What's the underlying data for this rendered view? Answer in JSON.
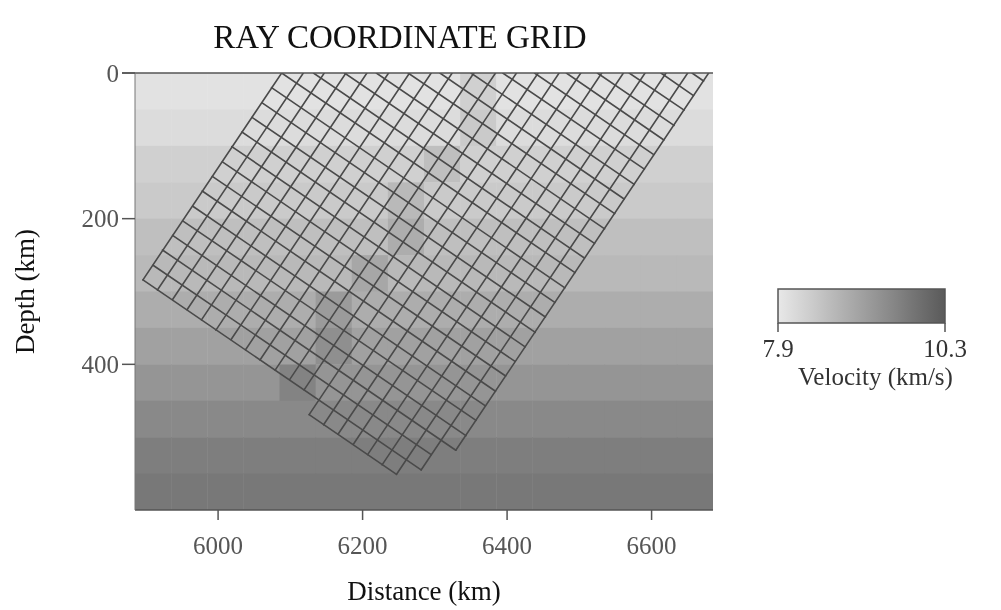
{
  "chart_data": {
    "type": "heatmap",
    "title": "RAY COORDINATE GRID",
    "xlabel": "Distance (km)",
    "ylabel": "Depth (km)",
    "clabel": "Velocity (km/s)",
    "xlim": [
      5885,
      6685
    ],
    "xticks": [
      6000,
      6200,
      6400,
      6600
    ],
    "ylim": [
      600,
      0
    ],
    "yticks": [
      0,
      200,
      400
    ],
    "clim": [
      7.9,
      10.3
    ],
    "cticks": [
      7.9,
      10.3
    ],
    "colors": [
      "#e8e8e8",
      "#5a5a5a"
    ],
    "cells": [
      [
        8.0,
        8.0,
        8.0,
        8.0,
        8.0,
        8.0,
        8.0,
        8.0,
        8.0,
        8.3,
        8.0,
        8.0,
        8.0,
        8.0,
        8.0,
        8.0
      ],
      [
        8.1,
        8.1,
        8.1,
        8.1,
        8.1,
        8.1,
        8.1,
        8.1,
        8.1,
        8.4,
        8.1,
        8.1,
        8.1,
        8.1,
        8.1,
        8.1
      ],
      [
        8.3,
        8.3,
        8.3,
        8.3,
        8.3,
        8.3,
        8.3,
        8.3,
        8.6,
        8.3,
        8.3,
        8.3,
        8.3,
        8.3,
        8.3,
        8.3
      ],
      [
        8.4,
        8.4,
        8.4,
        8.4,
        8.4,
        8.4,
        8.4,
        8.7,
        8.4,
        8.4,
        8.4,
        8.4,
        8.4,
        8.4,
        8.4,
        8.4
      ],
      [
        8.6,
        8.6,
        8.6,
        8.6,
        8.6,
        8.6,
        8.6,
        8.9,
        8.6,
        8.6,
        8.6,
        8.6,
        8.6,
        8.6,
        8.6,
        8.6
      ],
      [
        8.7,
        8.7,
        8.7,
        8.7,
        8.7,
        8.7,
        9.0,
        8.7,
        8.7,
        8.7,
        8.7,
        8.7,
        8.7,
        8.7,
        8.7,
        8.7
      ],
      [
        8.9,
        8.9,
        8.9,
        8.9,
        8.9,
        9.2,
        8.9,
        8.9,
        8.9,
        8.9,
        8.9,
        8.9,
        8.9,
        8.9,
        8.9,
        8.9
      ],
      [
        9.1,
        9.1,
        9.1,
        9.1,
        9.1,
        9.4,
        9.1,
        9.1,
        9.1,
        9.1,
        9.1,
        9.1,
        9.1,
        9.1,
        9.1,
        9.1
      ],
      [
        9.3,
        9.3,
        9.3,
        9.3,
        9.6,
        9.3,
        9.3,
        9.3,
        9.3,
        9.3,
        9.3,
        9.3,
        9.3,
        9.3,
        9.3,
        9.3
      ],
      [
        9.5,
        9.5,
        9.5,
        9.5,
        9.5,
        9.5,
        9.5,
        9.5,
        9.5,
        9.5,
        9.5,
        9.5,
        9.5,
        9.5,
        9.5,
        9.5
      ],
      [
        9.7,
        9.7,
        9.7,
        9.7,
        9.7,
        9.7,
        9.7,
        9.7,
        9.7,
        9.7,
        9.7,
        9.7,
        9.7,
        9.7,
        9.7,
        9.7
      ],
      [
        9.8,
        9.8,
        9.8,
        9.8,
        9.8,
        9.8,
        9.8,
        9.8,
        9.8,
        9.8,
        9.8,
        9.8,
        9.8,
        9.8,
        9.8,
        9.8
      ]
    ],
    "series": [
      {
        "type": "line",
        "color": "#4a4a4a",
        "x": [
          6088,
          5896
        ],
        "values": [
          0,
          284
        ]
      },
      {
        "type": "line",
        "color": "#4a4a4a",
        "x": [
          6118,
          5916
        ],
        "values": [
          0,
          298
        ]
      },
      {
        "type": "line",
        "color": "#4a4a4a",
        "x": [
          6147,
          5937
        ],
        "values": [
          0,
          311
        ]
      },
      {
        "type": "line",
        "color": "#4a4a4a",
        "x": [
          6177,
          5957
        ],
        "values": [
          0,
          325
        ]
      },
      {
        "type": "line",
        "color": "#4a4a4a",
        "x": [
          6206,
          5977
        ],
        "values": [
          0,
          339
        ]
      },
      {
        "type": "line",
        "color": "#4a4a4a",
        "x": [
          6236,
          5997
        ],
        "values": [
          0,
          353
        ]
      },
      {
        "type": "line",
        "color": "#4a4a4a",
        "x": [
          6265,
          6018
        ],
        "values": [
          0,
          366
        ]
      },
      {
        "type": "line",
        "color": "#4a4a4a",
        "x": [
          6295,
          6038
        ],
        "values": [
          0,
          380
        ]
      },
      {
        "type": "line",
        "color": "#4a4a4a",
        "x": [
          6324,
          6058
        ],
        "values": [
          0,
          394
        ]
      },
      {
        "type": "line",
        "color": "#4a4a4a",
        "x": [
          6354,
          6079
        ],
        "values": [
          0,
          408
        ]
      },
      {
        "type": "line",
        "color": "#4a4a4a",
        "x": [
          6384,
          6099
        ],
        "values": [
          0,
          421
        ]
      },
      {
        "type": "line",
        "color": "#4a4a4a",
        "x": [
          6413,
          6119
        ],
        "values": [
          0,
          435
        ]
      },
      {
        "type": "line",
        "color": "#4a4a4a",
        "x": [
          6443,
          6126
        ],
        "values": [
          0,
          469
        ]
      },
      {
        "type": "line",
        "color": "#4a4a4a",
        "x": [
          6472,
          6146
        ],
        "values": [
          0,
          483
        ]
      },
      {
        "type": "line",
        "color": "#4a4a4a",
        "x": [
          6502,
          6166
        ],
        "values": [
          0,
          496
        ]
      },
      {
        "type": "line",
        "color": "#4a4a4a",
        "x": [
          6531,
          6187
        ],
        "values": [
          0,
          510
        ]
      },
      {
        "type": "line",
        "color": "#4a4a4a",
        "x": [
          6561,
          6207
        ],
        "values": [
          0,
          524
        ]
      },
      {
        "type": "line",
        "color": "#4a4a4a",
        "x": [
          6591,
          6227
        ],
        "values": [
          0,
          538
        ]
      },
      {
        "type": "line",
        "color": "#4a4a4a",
        "x": [
          6620,
          6247
        ],
        "values": [
          0,
          551
        ]
      },
      {
        "type": "line",
        "color": "#4a4a4a",
        "x": [
          6650,
          6281
        ],
        "values": [
          0,
          545
        ]
      },
      {
        "type": "line",
        "color": "#4a4a4a",
        "x": [
          6679,
          6329
        ],
        "values": [
          0,
          518
        ]
      },
      {
        "type": "line",
        "color": "#4a4a4a",
        "x": [
          6656,
          6672
        ],
        "values": [
          0,
          11
        ]
      },
      {
        "type": "line",
        "color": "#4a4a4a",
        "x": [
          6613,
          6658
        ],
        "values": [
          0,
          31
        ]
      },
      {
        "type": "line",
        "color": "#4a4a4a",
        "x": [
          6569,
          6645
        ],
        "values": [
          0,
          51
        ]
      },
      {
        "type": "line",
        "color": "#4a4a4a",
        "x": [
          6525,
          6631
        ],
        "values": [
          0,
          72
        ]
      },
      {
        "type": "line",
        "color": "#4a4a4a",
        "x": [
          6482,
          6617
        ],
        "values": [
          0,
          92
        ]
      },
      {
        "type": "line",
        "color": "#4a4a4a",
        "x": [
          6438,
          6603
        ],
        "values": [
          0,
          112
        ]
      },
      {
        "type": "line",
        "color": "#4a4a4a",
        "x": [
          6394,
          6590
        ],
        "values": [
          0,
          132
        ]
      },
      {
        "type": "line",
        "color": "#4a4a4a",
        "x": [
          6350,
          6576
        ],
        "values": [
          0,
          153
        ]
      },
      {
        "type": "line",
        "color": "#4a4a4a",
        "x": [
          6307,
          6562
        ],
        "values": [
          0,
          173
        ]
      },
      {
        "type": "line",
        "color": "#4a4a4a",
        "x": [
          6263,
          6549
        ],
        "values": [
          0,
          193
        ]
      },
      {
        "type": "line",
        "color": "#4a4a4a",
        "x": [
          6219,
          6535
        ],
        "values": [
          0,
          214
        ]
      },
      {
        "type": "line",
        "color": "#4a4a4a",
        "x": [
          6175,
          6521
        ],
        "values": [
          0,
          234
        ]
      },
      {
        "type": "line",
        "color": "#4a4a4a",
        "x": [
          6132,
          6507
        ],
        "values": [
          0,
          254
        ]
      },
      {
        "type": "line",
        "color": "#4a4a4a",
        "x": [
          6088,
          6494
        ],
        "values": [
          0,
          274
        ]
      },
      {
        "type": "line",
        "color": "#4a4a4a",
        "x": [
          6074,
          6480
        ],
        "values": [
          20,
          295
        ]
      },
      {
        "type": "line",
        "color": "#4a4a4a",
        "x": [
          6061,
          6466
        ],
        "values": [
          41,
          315
        ]
      },
      {
        "type": "line",
        "color": "#4a4a4a",
        "x": [
          6047,
          6453
        ],
        "values": [
          61,
          335
        ]
      },
      {
        "type": "line",
        "color": "#4a4a4a",
        "x": [
          6033,
          6439
        ],
        "values": [
          81,
          356
        ]
      },
      {
        "type": "line",
        "color": "#4a4a4a",
        "x": [
          6019,
          6425
        ],
        "values": [
          101,
          376
        ]
      },
      {
        "type": "line",
        "color": "#4a4a4a",
        "x": [
          6006,
          6411
        ],
        "values": [
          122,
          396
        ]
      },
      {
        "type": "line",
        "color": "#4a4a4a",
        "x": [
          5992,
          6398
        ],
        "values": [
          142,
          416
        ]
      },
      {
        "type": "line",
        "color": "#4a4a4a",
        "x": [
          5978,
          6384
        ],
        "values": [
          162,
          437
        ]
      },
      {
        "type": "line",
        "color": "#4a4a4a",
        "x": [
          5965,
          6370
        ],
        "values": [
          183,
          457
        ]
      },
      {
        "type": "line",
        "color": "#4a4a4a",
        "x": [
          5951,
          6357
        ],
        "values": [
          203,
          477
        ]
      },
      {
        "type": "line",
        "color": "#4a4a4a",
        "x": [
          5937,
          6343
        ],
        "values": [
          223,
          498
        ]
      },
      {
        "type": "line",
        "color": "#4a4a4a",
        "x": [
          5923,
          6329
        ],
        "values": [
          243,
          518
        ]
      },
      {
        "type": "line",
        "color": "#4a4a4a",
        "x": [
          5910,
          6295
        ],
        "values": [
          264,
          524
        ]
      },
      {
        "type": "line",
        "color": "#4a4a4a",
        "x": [
          5896,
          6281
        ],
        "values": [
          284,
          545
        ]
      },
      {
        "type": "line",
        "color": "#4a4a4a",
        "x": [
          6126,
          6247
        ],
        "values": [
          469,
          551
        ]
      }
    ]
  }
}
